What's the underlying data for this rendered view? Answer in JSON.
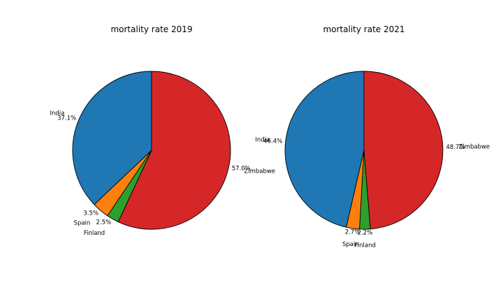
{
  "chart_data": [
    {
      "type": "pie",
      "title": "mortality rate 2019",
      "start_angle_deg": 90,
      "direction": "counterclockwise",
      "slices": [
        {
          "label": "India",
          "value": 37.1,
          "pct_label": "37.1%",
          "color": "#1f77b4"
        },
        {
          "label": "Spain",
          "value": 3.5,
          "pct_label": "3.5%",
          "color": "#ff7f0e"
        },
        {
          "label": "Finland",
          "value": 2.5,
          "pct_label": "2.5%",
          "color": "#2ca02c"
        },
        {
          "label": "Zimbabwe",
          "value": 57.0,
          "pct_label": "57.0%",
          "color": "#d62728"
        }
      ]
    },
    {
      "type": "pie",
      "title": "mortality rate 2021",
      "start_angle_deg": 90,
      "direction": "counterclockwise",
      "slices": [
        {
          "label": "India",
          "value": 46.4,
          "pct_label": "46.4%",
          "color": "#1f77b4"
        },
        {
          "label": "Spain",
          "value": 2.7,
          "pct_label": "2.7%",
          "color": "#ff7f0e"
        },
        {
          "label": "Finland",
          "value": 2.2,
          "pct_label": "2.2%",
          "color": "#2ca02c"
        },
        {
          "label": "Zimbabwe",
          "value": 48.7,
          "pct_label": "48.7%",
          "color": "#d62728"
        }
      ]
    }
  ]
}
